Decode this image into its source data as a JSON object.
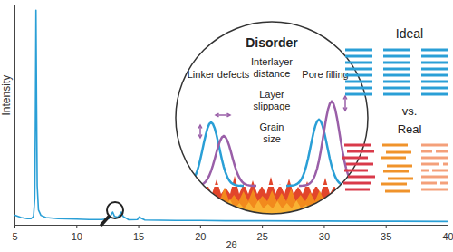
{
  "chart_data": {
    "type": "line",
    "x_label": "2θ",
    "y_label": "Intensity",
    "x": [
      5,
      5.5,
      6,
      6.3,
      6.5,
      6.6,
      6.65,
      6.7,
      6.75,
      6.8,
      6.9,
      7.1,
      7.5,
      8.5,
      10,
      11,
      12,
      12.6,
      12.8,
      12.9,
      13.05,
      13.3,
      13.5,
      13.6,
      13.75,
      14.2,
      14.9,
      15.05,
      15.2,
      15.5,
      18,
      20,
      22,
      25,
      28,
      30,
      33,
      36,
      40
    ],
    "values": [
      4.5,
      3.5,
      3,
      3,
      4,
      12,
      45,
      98,
      55,
      18,
      7,
      4.5,
      3.5,
      3,
      2.8,
      2.6,
      2.6,
      3,
      5,
      6,
      4,
      3.6,
      5,
      6,
      4,
      2.5,
      2.6,
      3.8,
      3.2,
      2.4,
      2.2,
      2.2,
      2,
      2,
      1.9,
      1.9,
      1.8,
      1.8,
      1.7
    ],
    "color": "#2a9fd6",
    "xlim": [
      5,
      40
    ],
    "xticks": [
      5,
      10,
      15,
      20,
      25,
      30,
      35,
      40
    ],
    "ylim": [
      0,
      100
    ],
    "tick_labels": "x",
    "annotations": {
      "inset_title": "Disorder",
      "inset_labels": [
        "Linker defects",
        "Interlayer distance",
        "Pore filling",
        "Layer slippage",
        "Grain size"
      ],
      "ideal": "Ideal",
      "vs": "vs.",
      "real": "Real"
    }
  }
}
